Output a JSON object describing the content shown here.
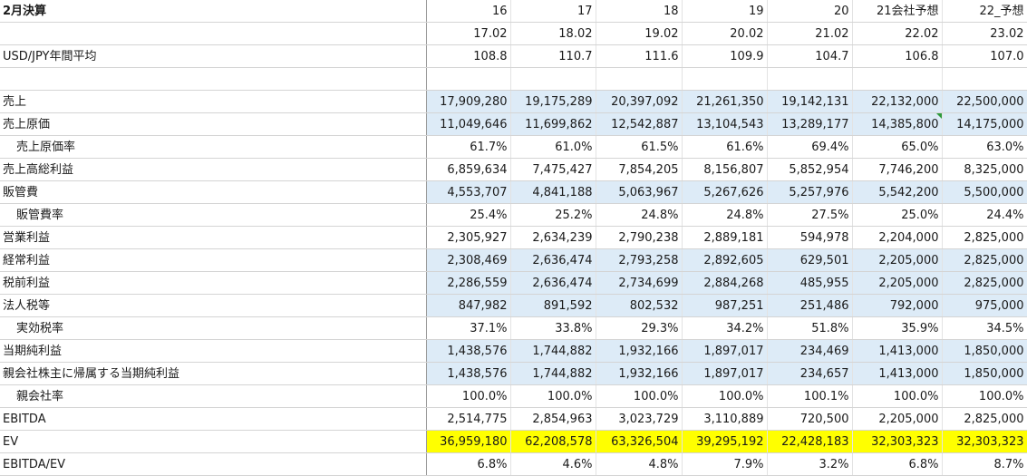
{
  "header": {
    "title": "2月決算",
    "years": [
      "16",
      "17",
      "18",
      "19",
      "20",
      "21会社予想",
      "22_予想"
    ],
    "periods": [
      "17.02",
      "18.02",
      "19.02",
      "20.02",
      "21.02",
      "22.02",
      "23.02"
    ]
  },
  "rows": [
    {
      "label": "USD/JPY年間平均",
      "values": [
        "108.8",
        "110.7",
        "111.6",
        "109.9",
        "104.7",
        "106.8",
        "107.0"
      ]
    },
    {
      "label": "",
      "values": [
        "",
        "",
        "",
        "",
        "",
        "",
        ""
      ]
    },
    {
      "label": "売上",
      "values": [
        "17,909,280",
        "19,175,289",
        "20,397,092",
        "21,261,350",
        "19,142,131",
        "22,132,000",
        "22,500,000"
      ]
    },
    {
      "label": "売上原価",
      "values": [
        "11,049,646",
        "11,699,862",
        "12,542,887",
        "13,104,543",
        "13,289,177",
        "14,385,800",
        "14,175,000"
      ]
    },
    {
      "label": "売上原価率",
      "values": [
        "61.7%",
        "61.0%",
        "61.5%",
        "61.6%",
        "69.4%",
        "65.0%",
        "63.0%"
      ]
    },
    {
      "label": "売上高総利益",
      "values": [
        "6,859,634",
        "7,475,427",
        "7,854,205",
        "8,156,807",
        "5,852,954",
        "7,746,200",
        "8,325,000"
      ]
    },
    {
      "label": "販管費",
      "values": [
        "4,553,707",
        "4,841,188",
        "5,063,967",
        "5,267,626",
        "5,257,976",
        "5,542,200",
        "5,500,000"
      ]
    },
    {
      "label": "販管費率",
      "values": [
        "25.4%",
        "25.2%",
        "24.8%",
        "24.8%",
        "27.5%",
        "25.0%",
        "24.4%"
      ]
    },
    {
      "label": "営業利益",
      "values": [
        "2,305,927",
        "2,634,239",
        "2,790,238",
        "2,889,181",
        "594,978",
        "2,204,000",
        "2,825,000"
      ]
    },
    {
      "label": "経常利益",
      "values": [
        "2,308,469",
        "2,636,474",
        "2,793,258",
        "2,892,605",
        "629,501",
        "2,205,000",
        "2,825,000"
      ]
    },
    {
      "label": "税前利益",
      "values": [
        "2,286,559",
        "2,636,474",
        "2,734,699",
        "2,884,268",
        "485,955",
        "2,205,000",
        "2,825,000"
      ]
    },
    {
      "label": "法人税等",
      "values": [
        "847,982",
        "891,592",
        "802,532",
        "987,251",
        "251,486",
        "792,000",
        "975,000"
      ]
    },
    {
      "label": "実効税率",
      "values": [
        "37.1%",
        "33.8%",
        "29.3%",
        "34.2%",
        "51.8%",
        "35.9%",
        "34.5%"
      ]
    },
    {
      "label": "当期純利益",
      "values": [
        "1,438,576",
        "1,744,882",
        "1,932,166",
        "1,897,017",
        "234,469",
        "1,413,000",
        "1,850,000"
      ]
    },
    {
      "label": "親会社株主に帰属する当期純利益",
      "values": [
        "1,438,576",
        "1,744,882",
        "1,932,166",
        "1,897,017",
        "234,657",
        "1,413,000",
        "1,850,000"
      ]
    },
    {
      "label": "親会社率",
      "values": [
        "100.0%",
        "100.0%",
        "100.0%",
        "100.0%",
        "100.1%",
        "100.0%",
        "100.0%"
      ]
    },
    {
      "label": "EBITDA",
      "values": [
        "2,514,775",
        "2,854,963",
        "3,023,729",
        "3,110,889",
        "720,500",
        "2,205,000",
        "2,825,000"
      ]
    },
    {
      "label": "EV",
      "values": [
        "36,959,180",
        "62,208,578",
        "63,326,504",
        "39,295,192",
        "22,428,183",
        "32,303,323",
        "32,303,323"
      ]
    },
    {
      "label": "EBITDA/EV",
      "values": [
        "6.8%",
        "4.6%",
        "4.8%",
        "7.9%",
        "3.2%",
        "6.8%",
        "8.7%"
      ]
    }
  ],
  "colors": {
    "shade": "#ddebf7",
    "highlight": "#ffff00",
    "comment_marker": "#2e9a3a"
  }
}
